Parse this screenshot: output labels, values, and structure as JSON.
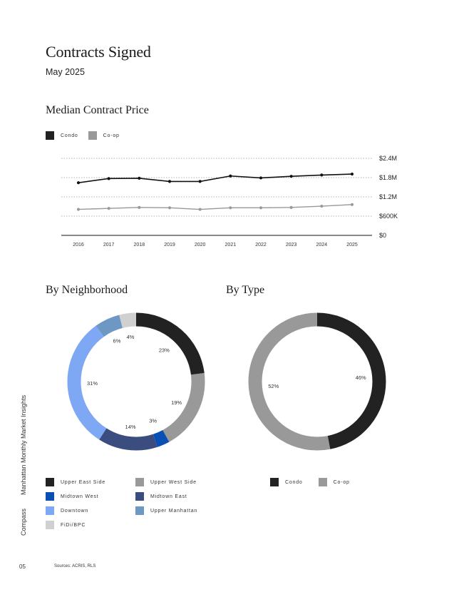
{
  "title": "Contracts Signed",
  "subtitle": "May 2025",
  "median_section": {
    "title": "Median Contract Price",
    "legend": [
      {
        "label": "Condo",
        "color": "#222222"
      },
      {
        "label": "Co-op",
        "color": "#999999"
      }
    ]
  },
  "neighborhood_section": {
    "title": "By Neighborhood",
    "legend": [
      {
        "label": "Upper East Side",
        "color": "#222222"
      },
      {
        "label": "Upper West Side",
        "color": "#999999"
      },
      {
        "label": "Midtown West",
        "color": "#0a4fb3"
      },
      {
        "label": "Midtown East",
        "color": "#3a4d7e"
      },
      {
        "label": "Downtown",
        "color": "#7fa8f4"
      },
      {
        "label": "Upper Manhattan",
        "color": "#6d98c4"
      },
      {
        "label": "FiDi/BPC",
        "color": "#d0d0d0"
      }
    ]
  },
  "type_section": {
    "title": "By Type",
    "legend": [
      {
        "label": "Condo",
        "color": "#222222"
      },
      {
        "label": "Co-op",
        "color": "#999999"
      }
    ]
  },
  "sidebar": {
    "brand": "Compass",
    "publication": "Manhattan Monthly Market Insights"
  },
  "footer": {
    "page": "05",
    "sources": "Sources: ACRIS, RLS"
  },
  "chart_data": [
    {
      "type": "line",
      "title": "Median Contract Price",
      "x": [
        "2016",
        "2017",
        "2018",
        "2019",
        "2020",
        "2021",
        "2022",
        "2023",
        "2024",
        "2025"
      ],
      "series": [
        {
          "name": "Condo",
          "color": "#111111",
          "values": [
            1640000,
            1770000,
            1780000,
            1680000,
            1680000,
            1850000,
            1790000,
            1840000,
            1880000,
            1910000
          ]
        },
        {
          "name": "Co-op",
          "color": "#999999",
          "values": [
            810000,
            840000,
            870000,
            860000,
            810000,
            860000,
            860000,
            870000,
            910000,
            960000
          ]
        }
      ],
      "yticks": [
        {
          "value": 0,
          "label": "$0"
        },
        {
          "value": 600000,
          "label": "$600K"
        },
        {
          "value": 1200000,
          "label": "$1.2M"
        },
        {
          "value": 1800000,
          "label": "$1.8M"
        },
        {
          "value": 2400000,
          "label": "$2.4M"
        }
      ],
      "ylim": [
        0,
        2400000
      ],
      "grid": true,
      "legend_position": "top-left"
    },
    {
      "type": "pie",
      "title": "By Neighborhood",
      "donut": true,
      "slices": [
        {
          "name": "Upper East Side",
          "value": 23,
          "label": "23%",
          "color": "#222222"
        },
        {
          "name": "Upper West Side",
          "value": 19,
          "label": "19%",
          "color": "#999999"
        },
        {
          "name": "Midtown West",
          "value": 3,
          "label": "3%",
          "color": "#0a4fb3"
        },
        {
          "name": "Midtown East",
          "value": 14,
          "label": "14%",
          "color": "#3a4d7e"
        },
        {
          "name": "Downtown",
          "value": 31,
          "label": "31%",
          "color": "#7fa8f4"
        },
        {
          "name": "Upper Manhattan",
          "value": 6,
          "label": "6%",
          "color": "#6d98c4"
        },
        {
          "name": "FiDi/BPC",
          "value": 4,
          "label": "4%",
          "color": "#d0d0d0"
        }
      ]
    },
    {
      "type": "pie",
      "title": "By Type",
      "donut": true,
      "slices": [
        {
          "name": "Condo",
          "value": 46,
          "label": "46%",
          "color": "#222222"
        },
        {
          "name": "Co-op",
          "value": 52,
          "label": "52%",
          "color": "#999999"
        }
      ]
    }
  ]
}
